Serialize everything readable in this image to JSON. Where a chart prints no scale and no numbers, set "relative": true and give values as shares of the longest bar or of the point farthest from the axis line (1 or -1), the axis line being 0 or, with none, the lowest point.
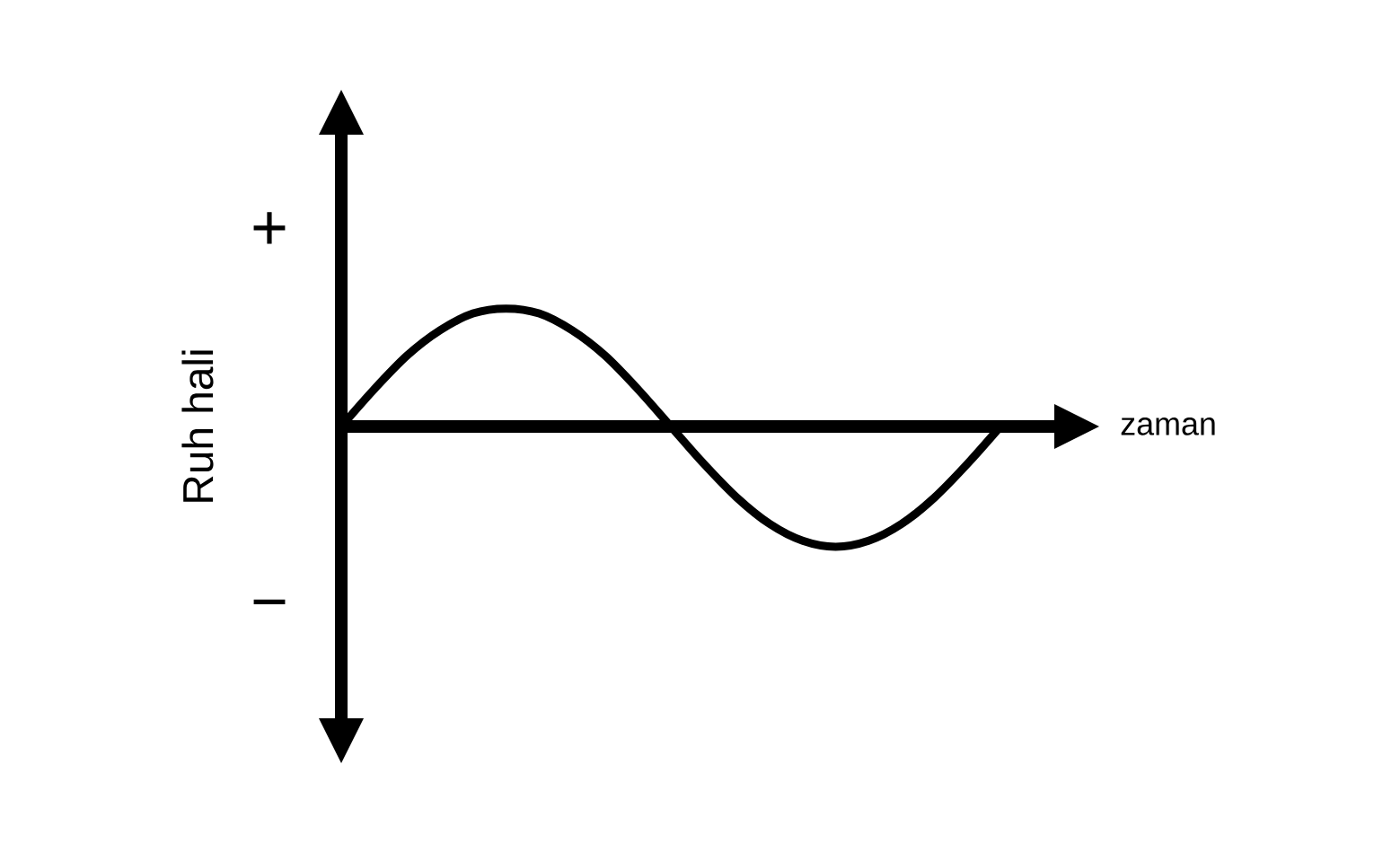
{
  "chart_data": {
    "type": "line",
    "relative": true,
    "xlabel": "zaman",
    "ylabel": "Ruh hali",
    "annotations": [
      "+",
      "−"
    ],
    "color": "#000000",
    "categories": [
      null,
      null,
      null,
      null,
      null,
      null,
      null,
      null,
      null,
      null,
      null,
      null,
      null,
      null,
      null,
      null,
      null,
      null,
      null,
      null,
      null
    ],
    "values": [
      0,
      0.31,
      0.59,
      0.8,
      0.94,
      0.98,
      0.94,
      0.8,
      0.59,
      0.31,
      0,
      -0.31,
      -0.59,
      -0.81,
      -0.95,
      -1,
      -0.95,
      -0.81,
      -0.59,
      -0.31,
      0
    ]
  }
}
